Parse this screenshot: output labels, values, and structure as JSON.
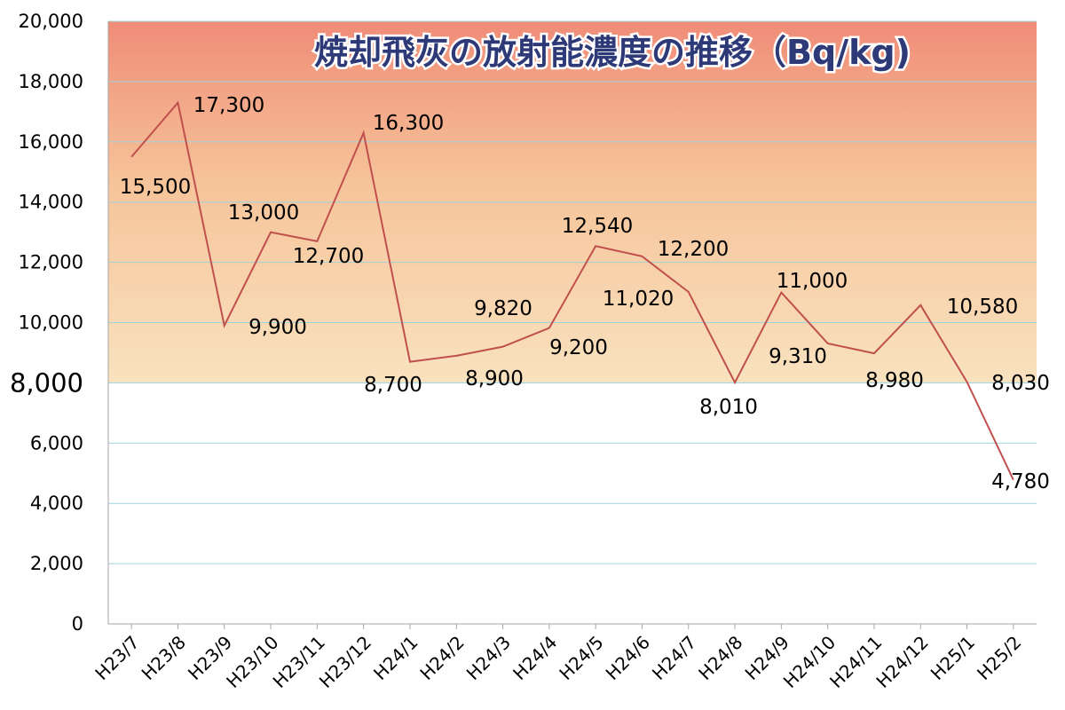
{
  "chart_data": {
    "type": "line",
    "title": "焼却飛灰の放射能濃度の推移（Bq/kg)",
    "xlabel": "",
    "ylabel": "",
    "categories": [
      "H23/7",
      "H23/8",
      "H23/9",
      "H23/10",
      "H23/11",
      "H23/12",
      "H24/1",
      "H24/2",
      "H24/3",
      "H24/4",
      "H24/5",
      "H24/6",
      "H24/7",
      "H24/8",
      "H24/9",
      "H24/10",
      "H24/11",
      "H24/12",
      "H25/1",
      "H25/2"
    ],
    "series": [
      {
        "values": [
          15500,
          17300,
          9900,
          13000,
          12700,
          16300,
          8700,
          8900,
          9200,
          9820,
          12540,
          12200,
          11020,
          8010,
          11000,
          9310,
          8980,
          10580,
          8030,
          4780
        ],
        "data_labels": [
          "15,500",
          "17,300",
          "9,900",
          "13,000",
          "12,700",
          "16,300",
          "8,700",
          "8,900",
          "9,200",
          "9,820",
          "12,540",
          "12,200",
          "11,020",
          "8,010",
          "11,000",
          "9,310",
          "8,980",
          "10,580",
          "8,030",
          "4,780"
        ],
        "highlight_label": "17,300"
      }
    ],
    "ylim": [
      0,
      20000
    ],
    "yticks": [
      "0",
      "2,000",
      "4,000",
      "6,000",
      "8,000",
      "10,000",
      "12,000",
      "14,000",
      "16,000",
      "18,000",
      "20,000"
    ],
    "highlight_ytick": "8,000",
    "threshold": 8000,
    "grid": true,
    "legend": "none",
    "colors": {
      "line": "#c0504d",
      "grid": "#9fd3dc",
      "highlight": "#e01b1b",
      "title": "#2e3a78",
      "band_top": "#f08c78",
      "band_mid": "#f6c49a",
      "band_bottom": "#f9e2bf"
    }
  }
}
